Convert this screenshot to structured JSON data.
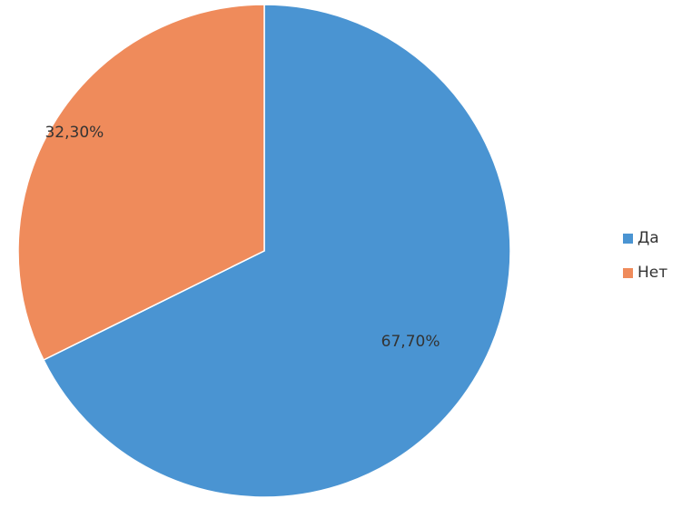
{
  "chart_data": {
    "type": "pie",
    "categories": [
      "Да",
      "Нет"
    ],
    "values": [
      67.7,
      32.3
    ],
    "data_labels": [
      "67,70%",
      "32,30%"
    ],
    "colors": [
      "#4a94d2",
      "#ef8b5b"
    ],
    "legend_position": "right",
    "start_angle": "top",
    "direction": "clockwise"
  },
  "legend": {
    "items": [
      {
        "label": "Да",
        "color": "#4a94d2"
      },
      {
        "label": "Нет",
        "color": "#ef8b5b"
      }
    ]
  }
}
